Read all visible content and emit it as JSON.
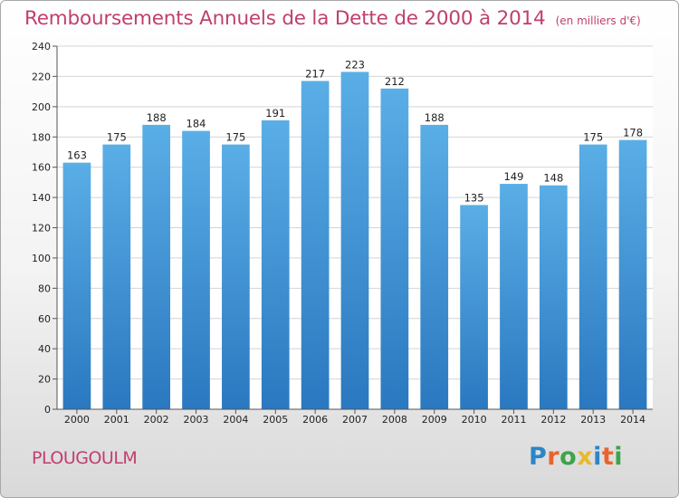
{
  "chart_data": {
    "type": "bar",
    "title": "Remboursements Annuels de la Dette de 2000 à 2014",
    "unit_note": "(en milliers d'€)",
    "xlabel": "",
    "ylabel": "",
    "categories": [
      "2000",
      "2001",
      "2002",
      "2003",
      "2004",
      "2005",
      "2006",
      "2007",
      "2008",
      "2009",
      "2010",
      "2011",
      "2012",
      "2013",
      "2014"
    ],
    "values": [
      163,
      175,
      188,
      184,
      175,
      191,
      217,
      223,
      212,
      188,
      135,
      149,
      148,
      175,
      178
    ],
    "ylim": [
      0,
      240
    ],
    "yticks": [
      0,
      20,
      40,
      60,
      80,
      100,
      120,
      140,
      160,
      180,
      200,
      220,
      240
    ],
    "grid": true,
    "bar_color_top": "#5aaee6",
    "bar_color_bottom": "#2a78c0"
  },
  "footer": {
    "commune": "PLOUGOULM",
    "brand_letters": [
      "P",
      "r",
      "o",
      "x",
      "i",
      "t",
      "i"
    ],
    "brand_colors": [
      "#2a86c8",
      "#e8642c",
      "#3da54a",
      "#e8b92c",
      "#2a86c8",
      "#e8642c",
      "#3da54a"
    ]
  },
  "colors": {
    "accent": "#c03f6f",
    "grid": "#d4d4d4",
    "axis": "#555555"
  }
}
